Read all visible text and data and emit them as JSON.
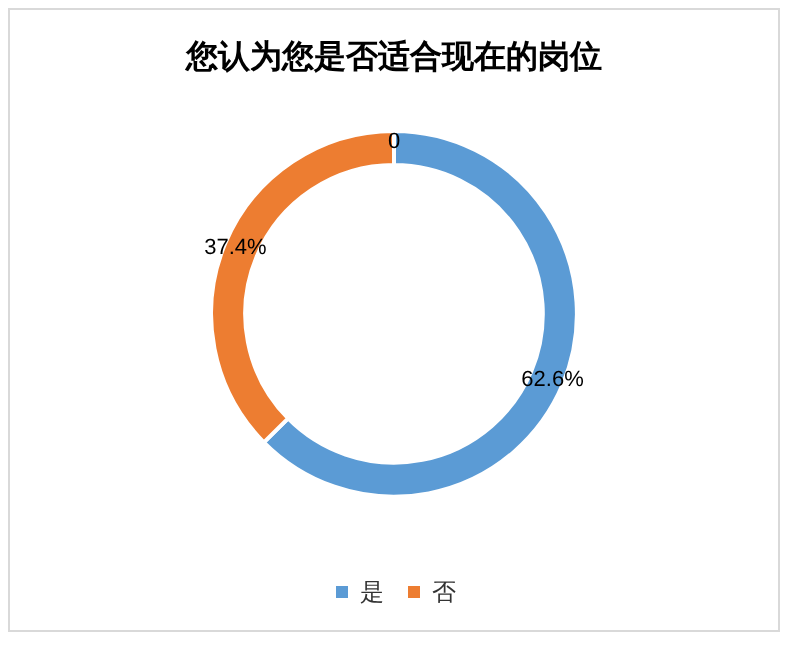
{
  "chart_data": {
    "type": "donut",
    "title": "您认为您是否适合现在的岗位",
    "categories": [
      "是",
      "否",
      null
    ],
    "values": [
      62.6,
      37.4,
      0
    ],
    "colors": [
      "#5b9bd5",
      "#ed7d31",
      "#a5a5a5"
    ],
    "value_labels": [
      "62.6%",
      "37.4%",
      "0"
    ],
    "legend": "bottom"
  }
}
